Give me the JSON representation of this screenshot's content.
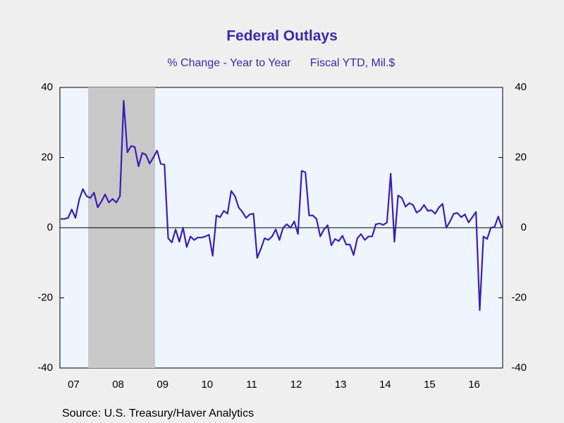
{
  "chart_data": {
    "type": "line",
    "title": "Federal Outlays",
    "subtitle": "% Change - Year to Year",
    "subtitle_right": "Fiscal YTD, Mil.$",
    "source": "Source:  U.S. Treasury/Haver Analytics",
    "categories": [
      null,
      null,
      null,
      "07",
      null,
      null,
      null,
      null,
      null,
      null,
      null,
      null,
      null,
      null,
      null,
      "08",
      null,
      null,
      null,
      null,
      null,
      null,
      null,
      null,
      null,
      null,
      null,
      "09",
      null,
      null,
      null,
      null,
      null,
      null,
      null,
      null,
      null,
      null,
      null,
      "10",
      null,
      null,
      null,
      null,
      null,
      null,
      null,
      null,
      null,
      null,
      null,
      "11",
      null,
      null,
      null,
      null,
      null,
      null,
      null,
      null,
      null,
      null,
      null,
      "12",
      null,
      null,
      null,
      null,
      null,
      null,
      null,
      null,
      null,
      null,
      null,
      "13",
      null,
      null,
      null,
      null,
      null,
      null,
      null,
      null,
      null,
      null,
      null,
      "14",
      null,
      null,
      null,
      null,
      null,
      null,
      null,
      null,
      null,
      null,
      null,
      "15",
      null,
      null,
      null,
      null,
      null,
      null,
      null,
      null,
      null,
      null,
      null,
      "16",
      null,
      null,
      null,
      null,
      null,
      null,
      null,
      null
    ],
    "series": [
      {
        "name": "Federal Outlays",
        "color": "#3b1fb5",
        "values": [
          2.5,
          2.5,
          2.8,
          5.2,
          2.8,
          8,
          11,
          9,
          8.5,
          10,
          5.8,
          7.5,
          9.5,
          7.2,
          8.2,
          7.2,
          9,
          36.2,
          21.5,
          23.3,
          23,
          17.5,
          21.3,
          20.8,
          18.3,
          20,
          22,
          18.2,
          18,
          -3,
          -4.2,
          -0.5,
          -4,
          0,
          -5.5,
          -2.5,
          -3.5,
          -2.8,
          -2.8,
          -2.5,
          -2,
          -8,
          3.5,
          3,
          4.8,
          4,
          10.5,
          9,
          5.8,
          4.5,
          2.8,
          3.8,
          4,
          -8.6,
          -6,
          -3,
          -3.5,
          -2.5,
          -0.5,
          -3.5,
          0,
          1,
          0,
          1.8,
          -1.8,
          16.2,
          15.8,
          3.5,
          3.5,
          2.5,
          -2.5,
          -0.5,
          0.7,
          -5,
          -3.2,
          -3.8,
          -2.3,
          -4.8,
          -4.8,
          -7.8,
          -3,
          -1.8,
          -3.5,
          -2.5,
          -2.5,
          1,
          1.2,
          0.8,
          1.5,
          15.4,
          -4,
          9.2,
          8.5,
          6,
          7,
          6.5,
          4.3,
          5,
          6.5,
          4.8,
          5,
          4,
          5.8,
          6.8,
          0,
          1.8,
          4,
          4.2,
          3,
          3.8,
          1.5,
          3,
          4.5,
          -23.5,
          -2.5,
          -3.2,
          0,
          0.2,
          3.2,
          0
        ]
      }
    ],
    "ylim": [
      -40,
      40
    ],
    "yticks": [
      -40,
      -20,
      0,
      20,
      40
    ],
    "y2lim": [
      -40,
      40
    ],
    "y2ticks": [
      -40,
      -20,
      0,
      20,
      40
    ]
  }
}
